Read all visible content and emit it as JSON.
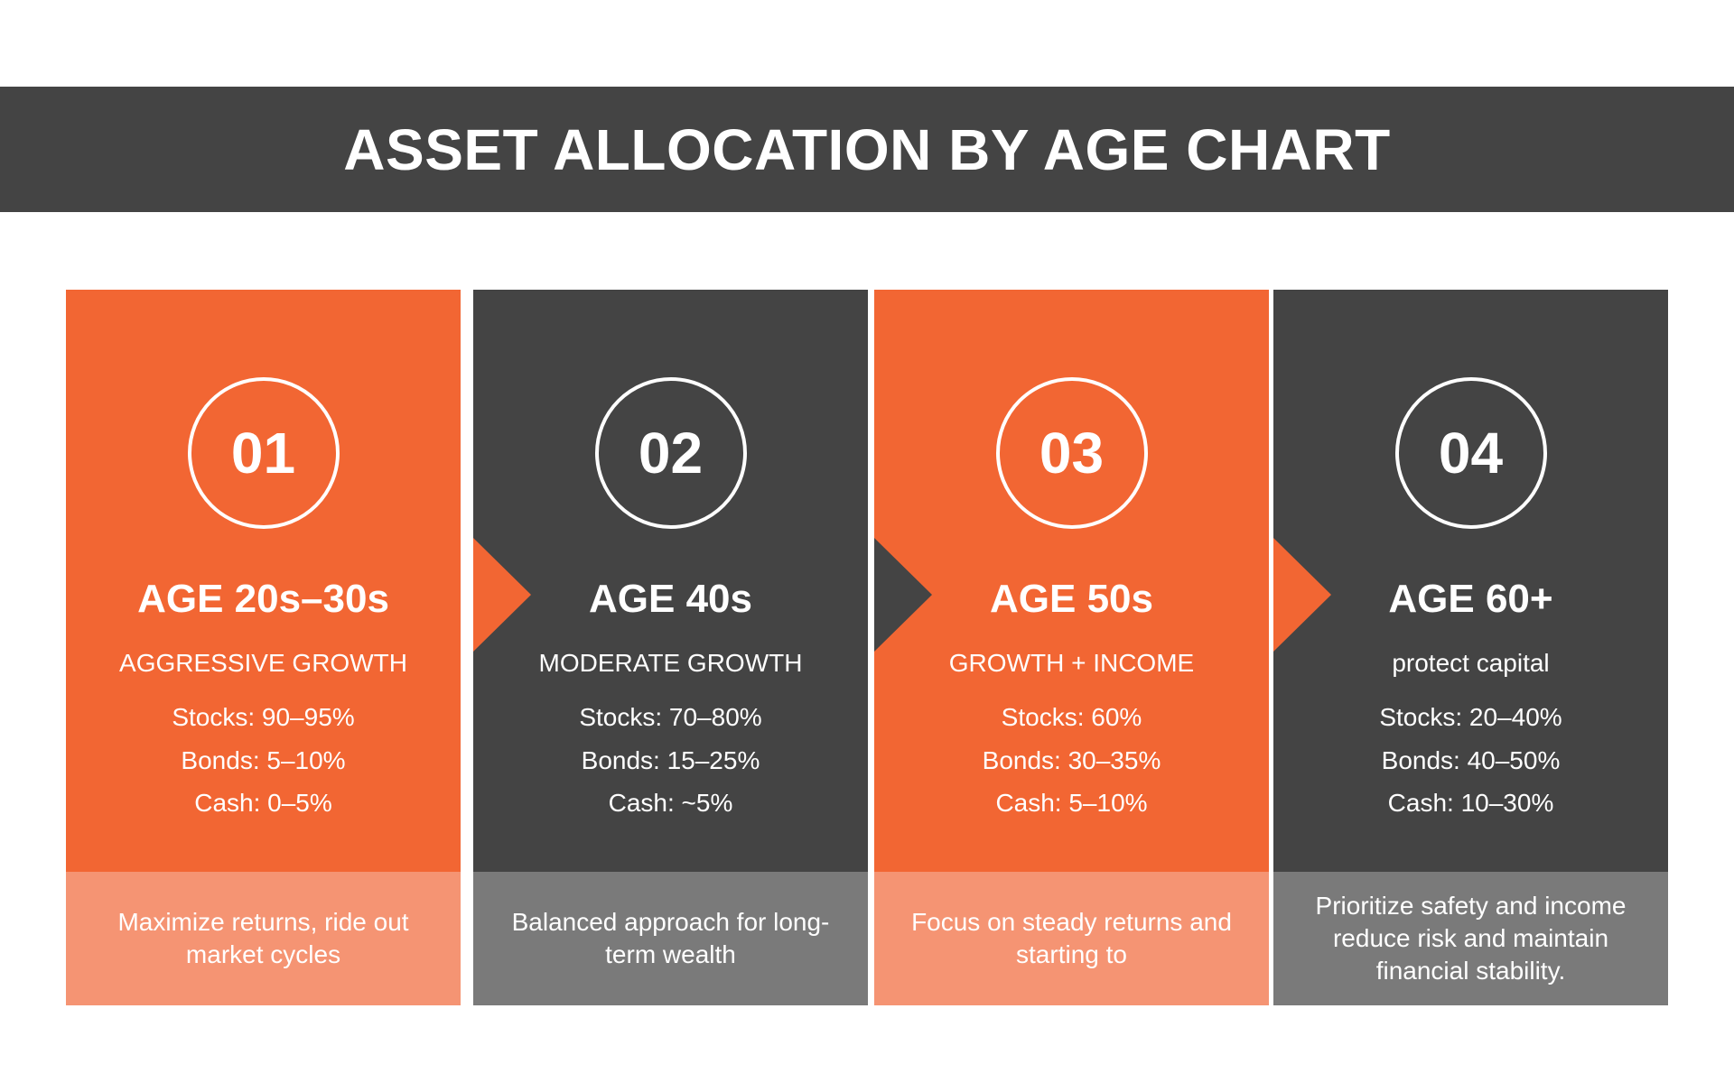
{
  "title": "ASSET ALLOCATION BY AGE CHART",
  "colors": {
    "header_bg": "#444444",
    "orange": "#F26633",
    "orange_light": "#F59473",
    "dark": "#444444",
    "gray": "#7A7A7A",
    "white": "#FFFFFF"
  },
  "stages": [
    {
      "number": "01",
      "age": "AGE 20s–30s",
      "strategy": "AGGRESSIVE GROWTH",
      "stocks": "Stocks: 90–95%",
      "bonds": "Bonds: 5–10%",
      "cash": "Cash: 0–5%",
      "note": "Maximize returns, ride out market cycles"
    },
    {
      "number": "02",
      "age": "AGE 40s",
      "strategy": "MODERATE GROWTH",
      "stocks": "Stocks: 70–80%",
      "bonds": "Bonds: 15–25%",
      "cash": "Cash: ~5%",
      "note": "Balanced approach for long-term wealth"
    },
    {
      "number": "03",
      "age": "AGE 50s",
      "strategy": "GROWTH + INCOME",
      "stocks": "Stocks: 60%",
      "bonds": "Bonds: 30–35%",
      "cash": "Cash: 5–10%",
      "note": "Focus on steady returns and starting to"
    },
    {
      "number": "04",
      "age": "AGE 60+",
      "strategy": "protect capital",
      "stocks": "Stocks: 20–40%",
      "bonds": "Bonds: 40–50%",
      "cash": "Cash: 10–30%",
      "note": "Prioritize safety and income reduce risk and maintain financial stability."
    }
  ]
}
